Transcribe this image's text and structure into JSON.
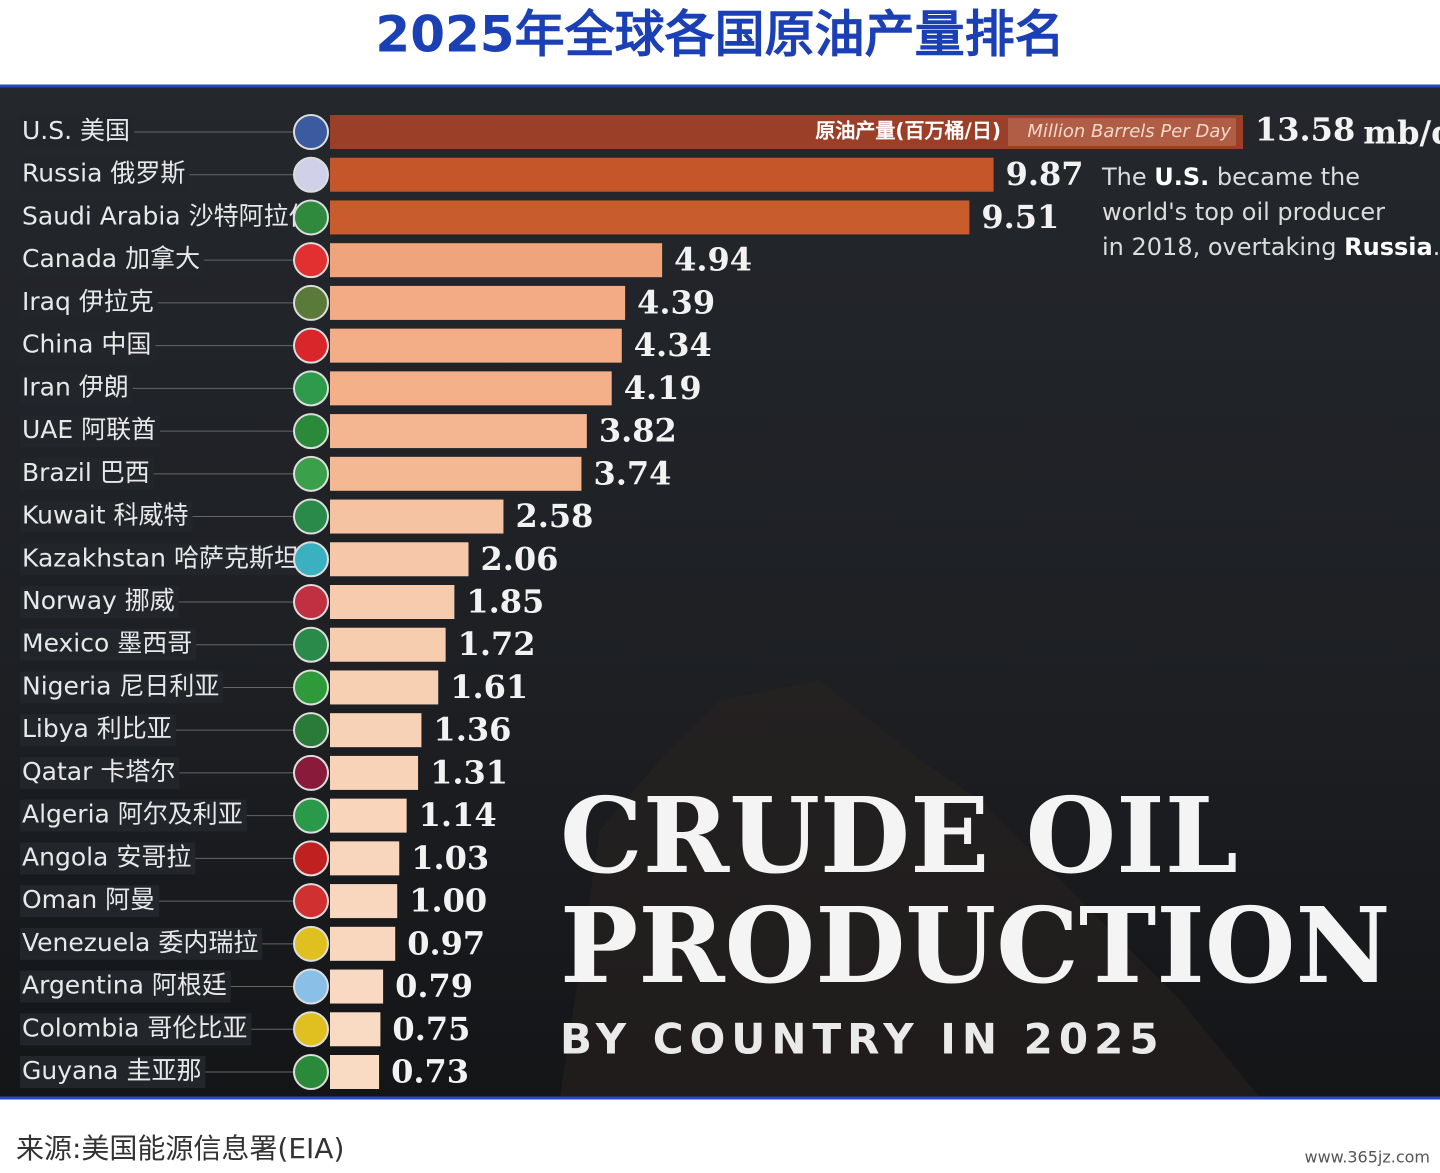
{
  "page_title": "2025年全球各国原油产量排名",
  "source": "来源:美国能源信息署(EIA)",
  "watermark": "www.365jz.com",
  "chart_data": {
    "type": "bar",
    "orientation": "horizontal",
    "headline": [
      "CRUDE OIL",
      "PRODUCTION"
    ],
    "subheadline": "BY COUNTRY IN 2025",
    "unit": "mb/d",
    "bar_label_cn": "原油产量(百万桶/日)",
    "bar_label_en": "Million Barrels Per Day",
    "annotation": [
      "The ",
      "U.S.",
      " became the",
      "world's top oil producer",
      "in 2018, overtaking ",
      "Russia",
      "."
    ],
    "categories": [
      "U.S. 美国",
      "Russia 俄罗斯",
      "Saudi Arabia 沙特阿拉伯",
      "Canada 加拿大",
      "Iraq 伊拉克",
      "China 中国",
      "Iran 伊朗",
      "UAE 阿联酋",
      "Brazil 巴西",
      "Kuwait 科威特",
      "Kazakhstan 哈萨克斯坦",
      "Norway 挪威",
      "Mexico 墨西哥",
      "Nigeria 尼日利亚",
      "Libya 利比亚",
      "Qatar 卡塔尔",
      "Algeria 阿尔及利亚",
      "Angola 安哥拉",
      "Oman 阿曼",
      "Venezuela 委内瑞拉",
      "Argentina 阿根廷",
      "Colombia 哥伦比亚",
      "Guyana 圭亚那"
    ],
    "values": [
      13.58,
      9.87,
      9.51,
      4.94,
      4.39,
      4.34,
      4.19,
      3.82,
      3.74,
      2.58,
      2.06,
      1.85,
      1.72,
      1.61,
      1.36,
      1.31,
      1.14,
      1.03,
      1.0,
      0.97,
      0.79,
      0.75,
      0.73
    ],
    "value_labels": [
      "13.58",
      "9.87",
      "9.51",
      "4.94",
      "4.39",
      "4.34",
      "4.19",
      "3.82",
      "3.74",
      "2.58",
      "2.06",
      "1.85",
      "1.72",
      "1.61",
      "1.36",
      "1.31",
      "1.14",
      "1.03",
      "1.00",
      "0.97",
      "0.79",
      "0.75",
      "0.73"
    ],
    "colors": [
      "#9b3f28",
      "#c4562a",
      "#c95c2d",
      "#f0a47b",
      "#f2ab84",
      "#f3ae87",
      "#f3b089",
      "#f4b690",
      "#f4b892",
      "#f6c3a2",
      "#f6c8a9",
      "#f7cbad",
      "#f7cdb0",
      "#f7cfb3",
      "#f8d2b7",
      "#f8d3b8",
      "#f8d5bb",
      "#f8d6bd",
      "#f8d7be",
      "#f8d7be",
      "#f9d9c1",
      "#f9dac2",
      "#f9dac2"
    ]
  }
}
